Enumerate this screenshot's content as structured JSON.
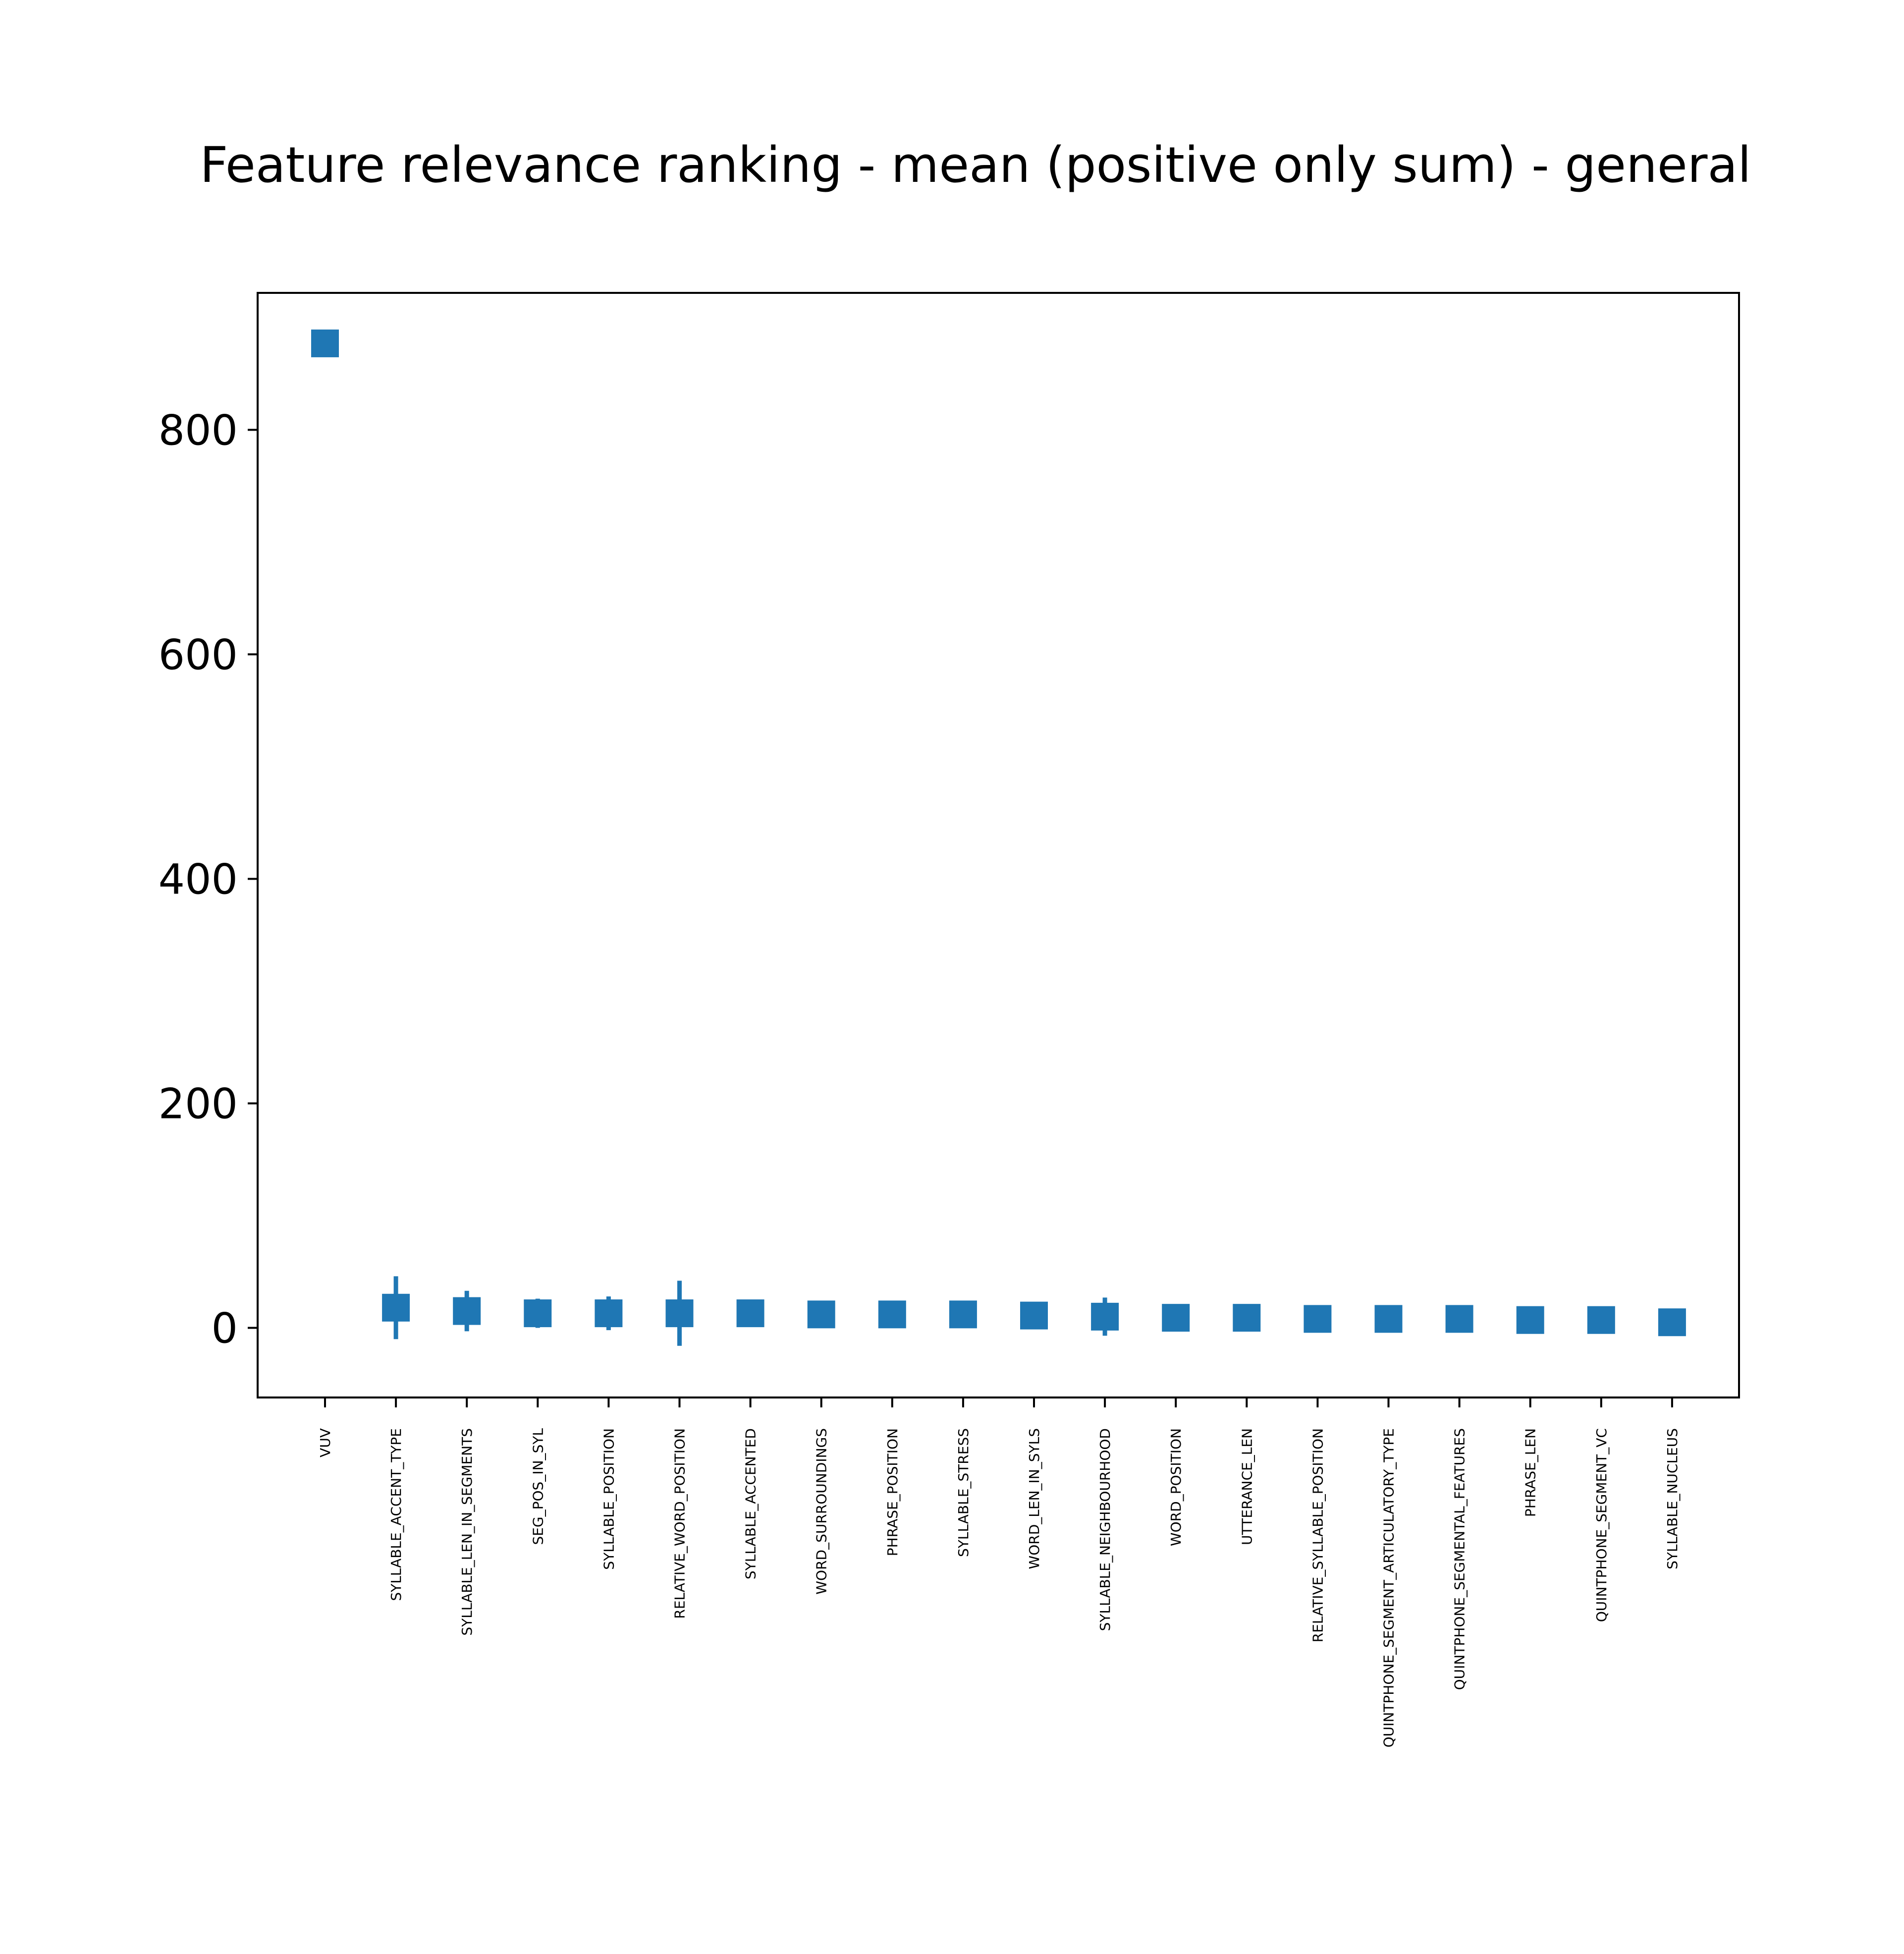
{
  "chart_data": {
    "type": "scatter",
    "title": "Feature relevance ranking - mean (positive only sum) - general",
    "xlabel": "",
    "ylabel": "",
    "categories": [
      "VUV",
      "SYLLABLE_ACCENT_TYPE",
      "SYLLABLE_LEN_IN_SEGMENTS",
      "SEG_POS_IN_SYL",
      "SYLLABLE_POSITION",
      "RELATIVE_WORD_POSITION",
      "SYLLABLE_ACCENTED",
      "WORD_SURROUNDINGS",
      "PHRASE_POSITION",
      "SYLLABLE_STRESS",
      "WORD_LEN_IN_SYLS",
      "SYLLABLE_NEIGHBOURHOOD",
      "WORD_POSITION",
      "UTTERANCE_LEN",
      "RELATIVE_SYLLABLE_POSITION",
      "QUINTPHONE_SEGMENT_ARTICULATORY_TYPE",
      "QUINTPHONE_SEGMENTAL_FEATURES",
      "PHRASE_LEN",
      "QUINTPHONE_SEGMENT_VC",
      "SYLLABLE_NUCLEUS"
    ],
    "series": [
      {
        "values": [
          877,
          18,
          15,
          13,
          13,
          13,
          13,
          12,
          12,
          12,
          11,
          10,
          9,
          9,
          8,
          8,
          8,
          7,
          7,
          5
        ],
        "error": [
          0,
          28,
          18,
          13,
          15,
          29,
          6,
          2,
          2,
          2,
          2,
          17,
          2,
          6,
          2,
          2,
          2,
          2,
          2,
          2
        ],
        "color": "#1f77b4",
        "marker": "square"
      }
    ],
    "yticks": [
      0,
      200,
      400,
      600,
      800
    ],
    "ytick_labels": [
      "0",
      "200",
      "400",
      "600",
      "800"
    ],
    "ylim": [
      -62,
      922
    ],
    "grid": false,
    "legend": "none"
  }
}
